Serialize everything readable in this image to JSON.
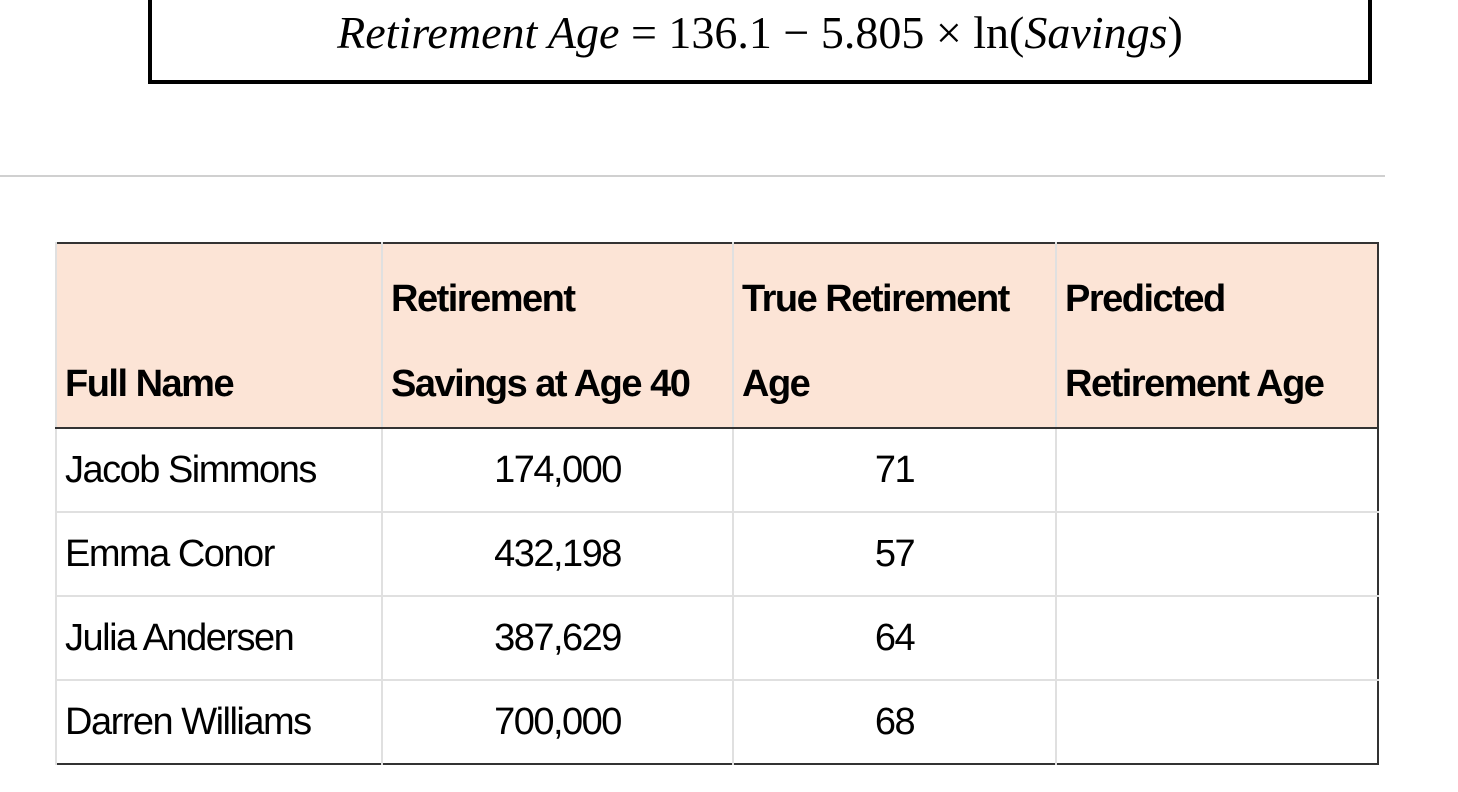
{
  "formula": {
    "parts": [
      "Retirement Age",
      " = 136.1 − 5.805 × ln(",
      "Savings",
      ")"
    ]
  },
  "table": {
    "header": [
      [
        "Full Name"
      ],
      [
        "Retirement",
        "Savings at Age 40"
      ],
      [
        "True Retirement",
        "Age"
      ],
      [
        "Predicted",
        "Retirement Age"
      ]
    ],
    "rows": [
      [
        "Jacob Simmons",
        "174,000",
        "71"
      ],
      [
        "Emma Conor",
        "432,198",
        "57"
      ],
      [
        "Julia Andersen",
        "387,629",
        "64"
      ],
      [
        "Darren Williams",
        "700,000",
        "68"
      ]
    ]
  }
}
